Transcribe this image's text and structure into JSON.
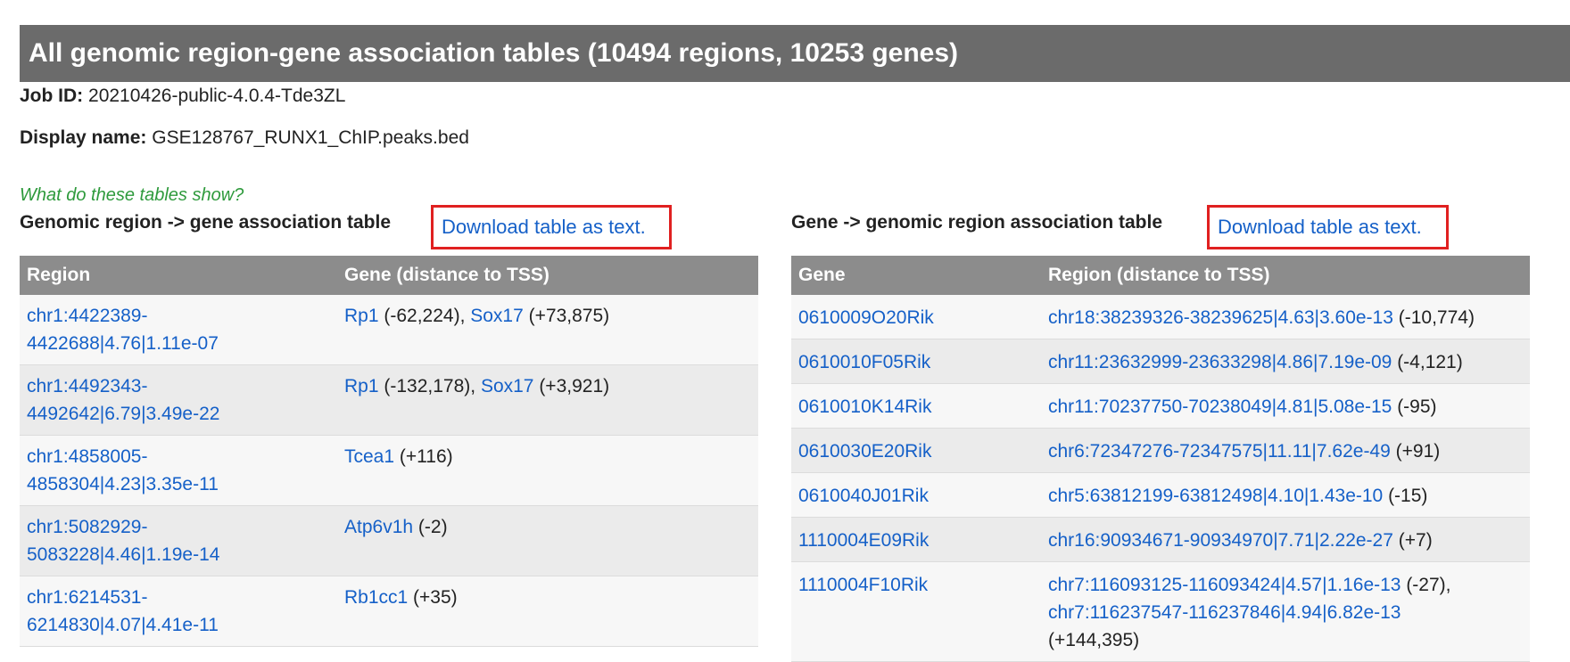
{
  "banner": {
    "title": "All genomic region-gene association tables (10494 regions, 10253 genes)"
  },
  "job": {
    "label": "Job ID:",
    "value": "20210426-public-4.0.4-Tde3ZL"
  },
  "display": {
    "label": "Display name:",
    "value": "GSE128767_RUNX1_ChIP.peaks.bed"
  },
  "help_link": "What do these tables show?",
  "left_table": {
    "title": "Genomic region -> gene association table",
    "download": "Download table as text.",
    "headers": [
      "Region",
      "Gene (distance to TSS)"
    ],
    "rows": [
      {
        "region_l1": "chr1:4422389-",
        "region_l2": "4422688|4.76|1.11e-07",
        "genes": [
          {
            "name": "Rp1",
            "dist": " (-62,224)",
            "sep": ", "
          },
          {
            "name": "Sox17",
            "dist": " (+73,875)"
          }
        ]
      },
      {
        "region_l1": "chr1:4492343-",
        "region_l2": "4492642|6.79|3.49e-22",
        "genes": [
          {
            "name": "Rp1",
            "dist": " (-132,178)",
            "sep": ", "
          },
          {
            "name": "Sox17",
            "dist": " (+3,921)"
          }
        ]
      },
      {
        "region_l1": "chr1:4858005-",
        "region_l2": "4858304|4.23|3.35e-11",
        "genes": [
          {
            "name": "Tcea1",
            "dist": " (+116)"
          }
        ]
      },
      {
        "region_l1": "chr1:5082929-",
        "region_l2": "5083228|4.46|1.19e-14",
        "genes": [
          {
            "name": "Atp6v1h",
            "dist": " (-2)"
          }
        ]
      },
      {
        "region_l1": "chr1:6214531-",
        "region_l2": "6214830|4.07|4.41e-11",
        "genes": [
          {
            "name": "Rb1cc1",
            "dist": " (+35)"
          }
        ]
      }
    ]
  },
  "right_table": {
    "title": "Gene -> genomic region association table",
    "download": "Download table as text.",
    "headers": [
      "Gene",
      "Region (distance to TSS)"
    ],
    "rows": [
      {
        "gene": "0610009O20Rik",
        "regions": [
          {
            "name": "chr18:38239326-38239625|4.63|3.60e-13",
            "dist": " (-10,774)"
          }
        ]
      },
      {
        "gene": "0610010F05Rik",
        "regions": [
          {
            "name": "chr11:23632999-23633298|4.86|7.19e-09",
            "dist": " (-4,121)"
          }
        ]
      },
      {
        "gene": "0610010K14Rik",
        "regions": [
          {
            "name": "chr11:70237750-70238049|4.81|5.08e-15",
            "dist": " (-95)"
          }
        ]
      },
      {
        "gene": "0610030E20Rik",
        "regions": [
          {
            "name": "chr6:72347276-72347575|11.11|7.62e-49",
            "dist": " (+91)"
          }
        ]
      },
      {
        "gene": "0610040J01Rik",
        "regions": [
          {
            "name": "chr5:63812199-63812498|4.10|1.43e-10",
            "dist": " (-15)"
          }
        ]
      },
      {
        "gene": "1110004E09Rik",
        "regions": [
          {
            "name": "chr16:90934671-90934970|7.71|2.22e-27",
            "dist": " (+7)"
          }
        ]
      },
      {
        "gene": "1110004F10Rik",
        "regions": [
          {
            "name": "chr7:116093125-116093424|4.57|1.16e-13",
            "dist": " (-27),",
            "br": true
          },
          {
            "name": "chr7:116237547-116237846|4.94|6.82e-13",
            "dist": "(+144,395)",
            "br_before_dist": true
          }
        ]
      }
    ]
  }
}
